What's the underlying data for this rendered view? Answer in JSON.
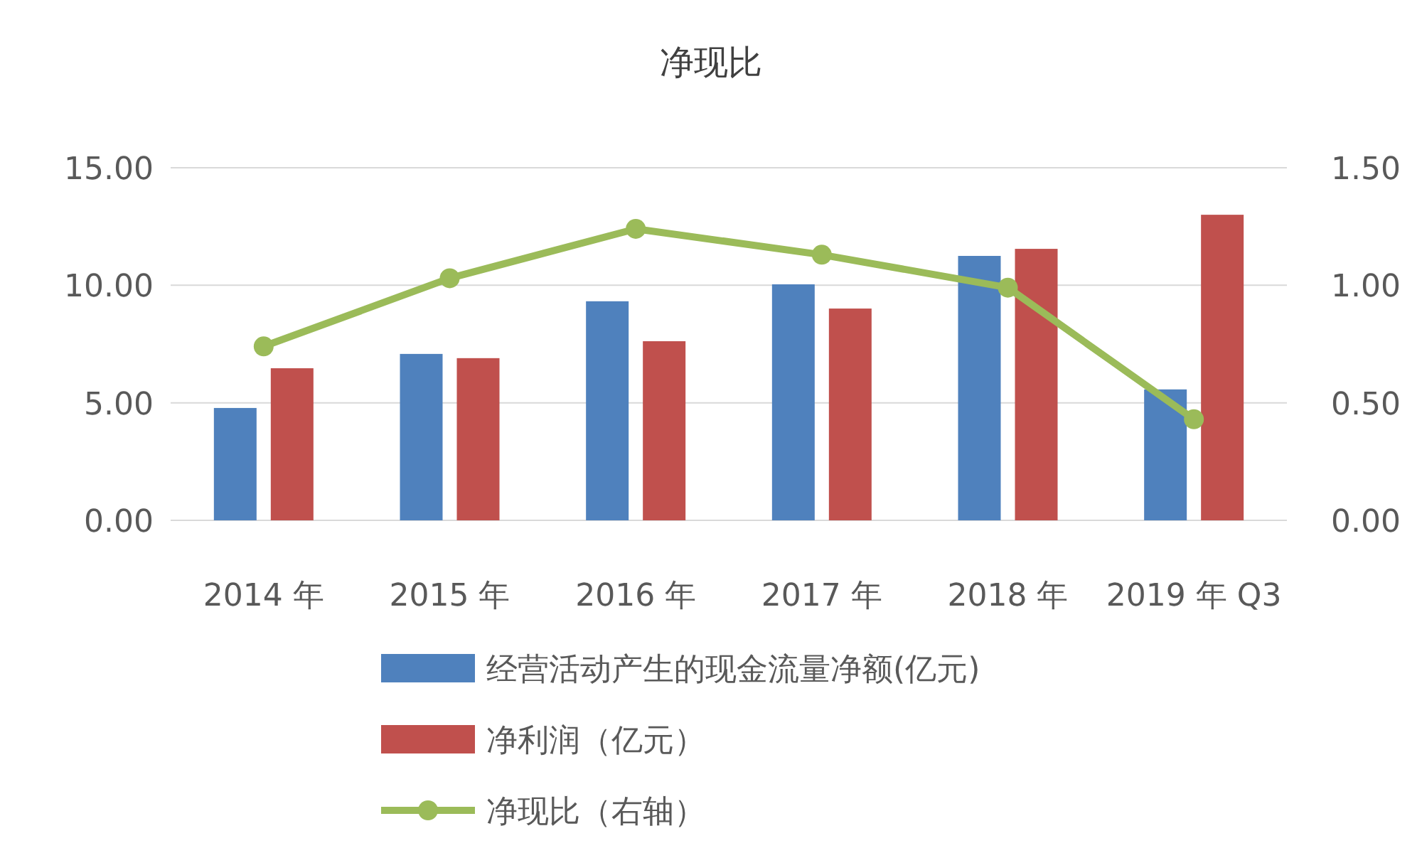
{
  "chart_data": {
    "type": "bar",
    "title": "净现比",
    "categories": [
      "2014 年",
      "2015 年",
      "2016 年",
      "2017 年",
      "2018 年",
      "2019 年 Q3"
    ],
    "series": [
      {
        "name": "经营活动产生的现金流量净额(亿元)",
        "color": "#4f81bd",
        "values": [
          4.78,
          7.08,
          9.32,
          10.04,
          11.25,
          5.57
        ]
      },
      {
        "name": "净利润（亿元）",
        "color": "#c0504d",
        "values": [
          6.47,
          6.9,
          7.62,
          9.01,
          11.55,
          13.0
        ]
      },
      {
        "name": "净现比（右轴）",
        "color": "#9bbb59",
        "type": "line",
        "axis": "y2",
        "marker": "circle",
        "values": [
          0.74,
          1.03,
          1.24,
          1.13,
          0.99,
          0.43
        ]
      }
    ],
    "ylim": [
      0,
      15
    ],
    "yticks": [
      {
        "value": 0,
        "label": "0.00"
      },
      {
        "value": 5,
        "label": "5.00"
      },
      {
        "value": 10,
        "label": "10.00"
      },
      {
        "value": 15,
        "label": "15.00"
      }
    ],
    "y2lim": [
      0,
      1.5
    ],
    "y2ticks": [
      {
        "value": 0,
        "label": "0.00"
      },
      {
        "value": 0.5,
        "label": "0.50"
      },
      {
        "value": 1,
        "label": "1.00"
      },
      {
        "value": 1.5,
        "label": "1.50"
      }
    ],
    "grid": "y",
    "legend": "bottom"
  }
}
